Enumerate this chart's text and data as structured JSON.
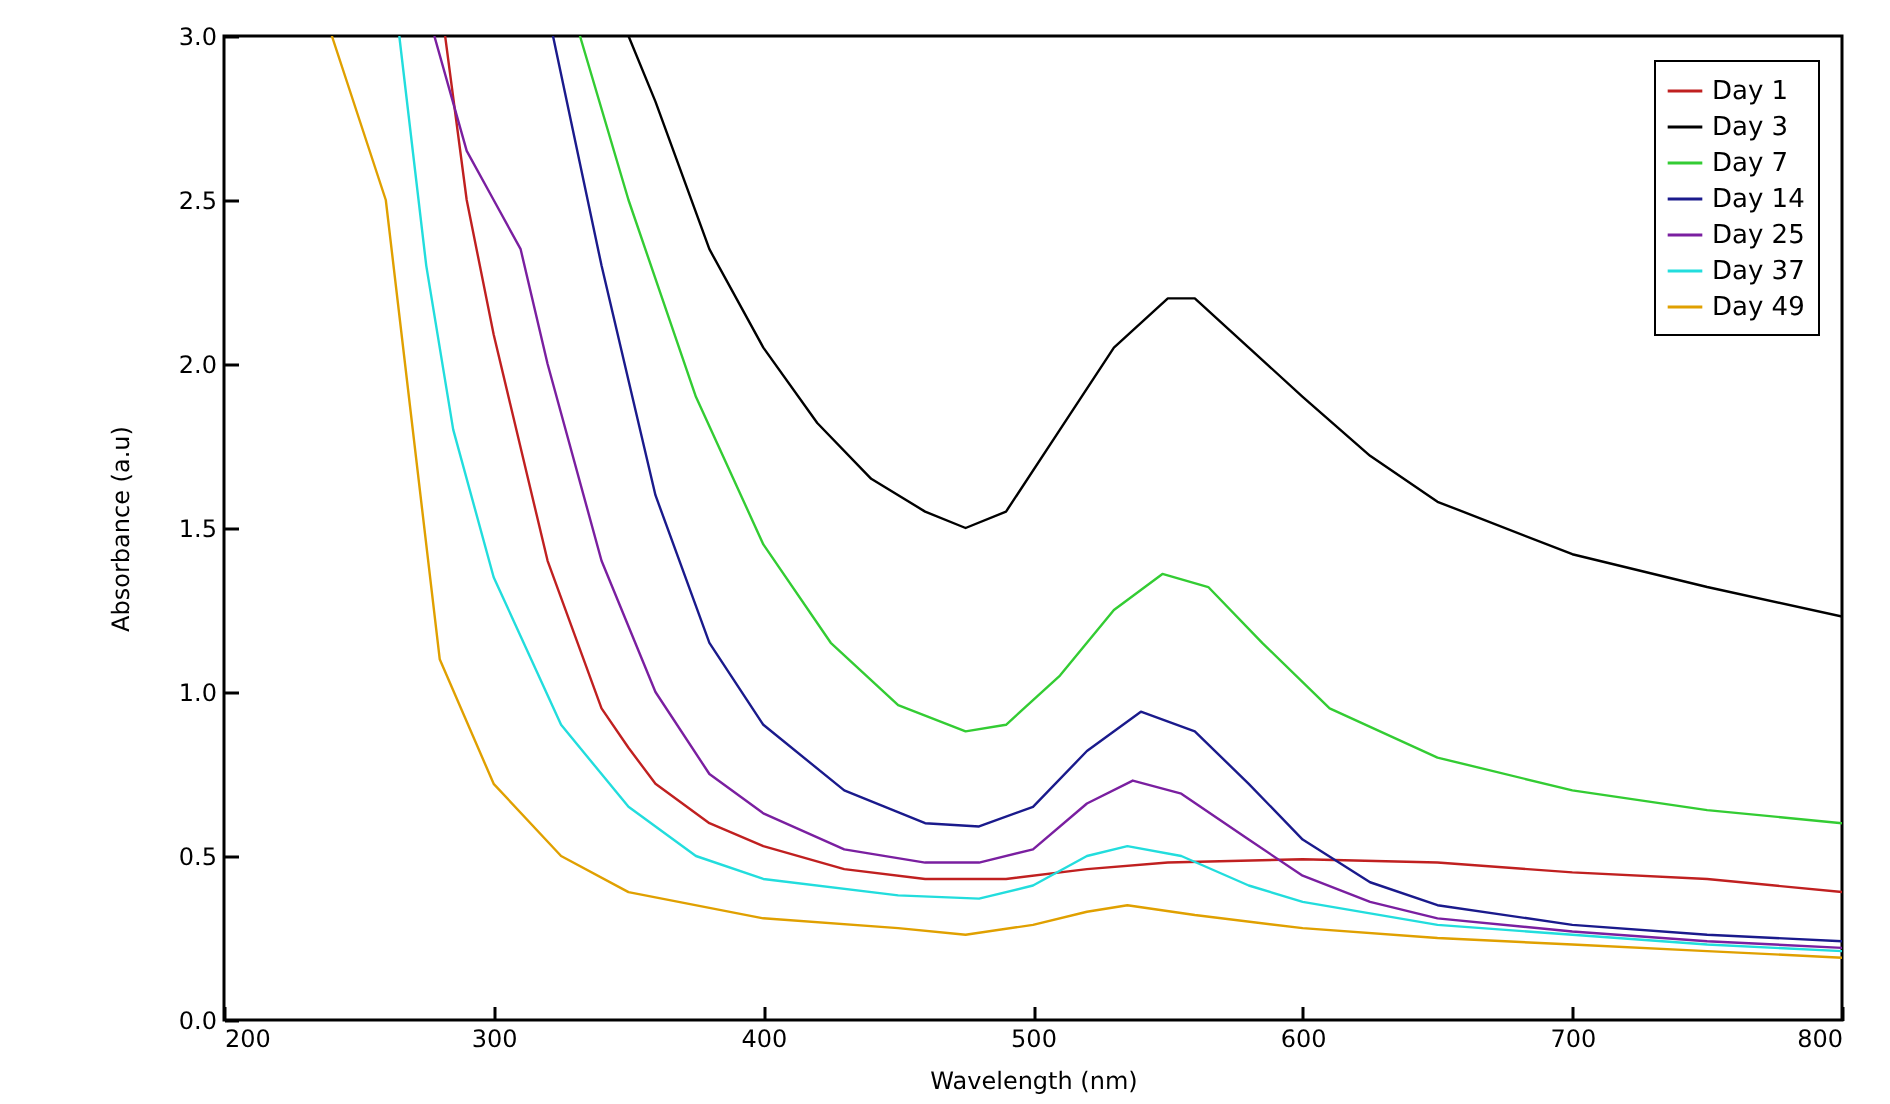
{
  "chart_data": {
    "type": "line",
    "xlabel": "Wavelength (nm)",
    "ylabel": "Absorbance (a.u)",
    "xlim": [
      200,
      800
    ],
    "ylim": [
      0,
      3
    ],
    "xticks": [
      200,
      300,
      400,
      500,
      600,
      700,
      800
    ],
    "yticks": [
      {
        "value": 0,
        "label": "0.0"
      },
      0.5,
      {
        "value": 1,
        "label": "1.0"
      },
      1.5,
      {
        "value": 2,
        "label": "2.0"
      },
      2.5,
      {
        "value": 3,
        "label": "3.0"
      }
    ],
    "grid": false,
    "legend": "top right",
    "marker": "none",
    "line_style": "solid",
    "series": [
      {
        "name": "Day 1",
        "color": "#c02020",
        "x": [
          282,
          290,
          300,
          320,
          340,
          350,
          360,
          380,
          400,
          430,
          460,
          490,
          520,
          550,
          600,
          650,
          700,
          750,
          800
        ],
        "values": [
          3.0,
          2.5,
          2.09,
          1.4,
          0.95,
          0.83,
          0.72,
          0.6,
          0.53,
          0.46,
          0.43,
          0.43,
          0.46,
          0.48,
          0.49,
          0.48,
          0.45,
          0.43,
          0.39
        ]
      },
      {
        "name": "Day 3",
        "color": "#000000",
        "x": [
          350,
          360,
          380,
          400,
          420,
          440,
          460,
          475,
          490,
          510,
          530,
          550,
          560,
          580,
          600,
          625,
          650,
          700,
          750,
          800
        ],
        "values": [
          3.0,
          2.8,
          2.35,
          2.05,
          1.82,
          1.65,
          1.55,
          1.5,
          1.55,
          1.8,
          2.05,
          2.2,
          2.2,
          2.05,
          1.9,
          1.72,
          1.58,
          1.42,
          1.32,
          1.23
        ]
      },
      {
        "name": "Day 7",
        "color": "#33cc33",
        "x": [
          332,
          350,
          375,
          400,
          425,
          450,
          475,
          490,
          510,
          530,
          548,
          565,
          585,
          610,
          650,
          700,
          750,
          800
        ],
        "values": [
          3.0,
          2.5,
          1.9,
          1.45,
          1.15,
          0.96,
          0.88,
          0.9,
          1.05,
          1.25,
          1.36,
          1.32,
          1.15,
          0.95,
          0.8,
          0.7,
          0.64,
          0.6
        ]
      },
      {
        "name": "Day 14",
        "color": "#1a1a8c",
        "x": [
          322,
          340,
          360,
          380,
          400,
          430,
          460,
          480,
          500,
          520,
          540,
          560,
          580,
          600,
          625,
          650,
          700,
          750,
          800
        ],
        "values": [
          3.0,
          2.3,
          1.6,
          1.15,
          0.9,
          0.7,
          0.6,
          0.59,
          0.65,
          0.82,
          0.94,
          0.88,
          0.72,
          0.55,
          0.42,
          0.35,
          0.29,
          0.26,
          0.24
        ]
      },
      {
        "name": "Day 25",
        "color": "#7a1fa0",
        "x": [
          278,
          290,
          300,
          310,
          320,
          340,
          360,
          380,
          400,
          430,
          460,
          480,
          500,
          520,
          537,
          555,
          580,
          600,
          625,
          650,
          700,
          750,
          800
        ],
        "values": [
          3.0,
          2.65,
          2.5,
          2.35,
          2.0,
          1.4,
          1.0,
          0.75,
          0.63,
          0.52,
          0.48,
          0.48,
          0.52,
          0.66,
          0.73,
          0.69,
          0.55,
          0.44,
          0.36,
          0.31,
          0.27,
          0.24,
          0.22
        ]
      },
      {
        "name": "Day 37",
        "color": "#22dddd",
        "x": [
          265,
          275,
          285,
          300,
          325,
          350,
          375,
          400,
          450,
          480,
          500,
          520,
          535,
          555,
          580,
          600,
          650,
          700,
          750,
          800
        ],
        "values": [
          3.0,
          2.3,
          1.8,
          1.35,
          0.9,
          0.65,
          0.5,
          0.43,
          0.38,
          0.37,
          0.41,
          0.5,
          0.53,
          0.5,
          0.41,
          0.36,
          0.29,
          0.26,
          0.23,
          0.21
        ]
      },
      {
        "name": "Day 49",
        "color": "#e0a000",
        "x": [
          240,
          250,
          260,
          270,
          280,
          300,
          325,
          350,
          400,
          450,
          475,
          500,
          520,
          535,
          560,
          600,
          650,
          700,
          750,
          800
        ],
        "values": [
          3.0,
          2.75,
          2.5,
          1.8,
          1.1,
          0.72,
          0.5,
          0.39,
          0.31,
          0.28,
          0.26,
          0.29,
          0.33,
          0.35,
          0.32,
          0.28,
          0.25,
          0.23,
          0.21,
          0.19
        ]
      }
    ]
  }
}
